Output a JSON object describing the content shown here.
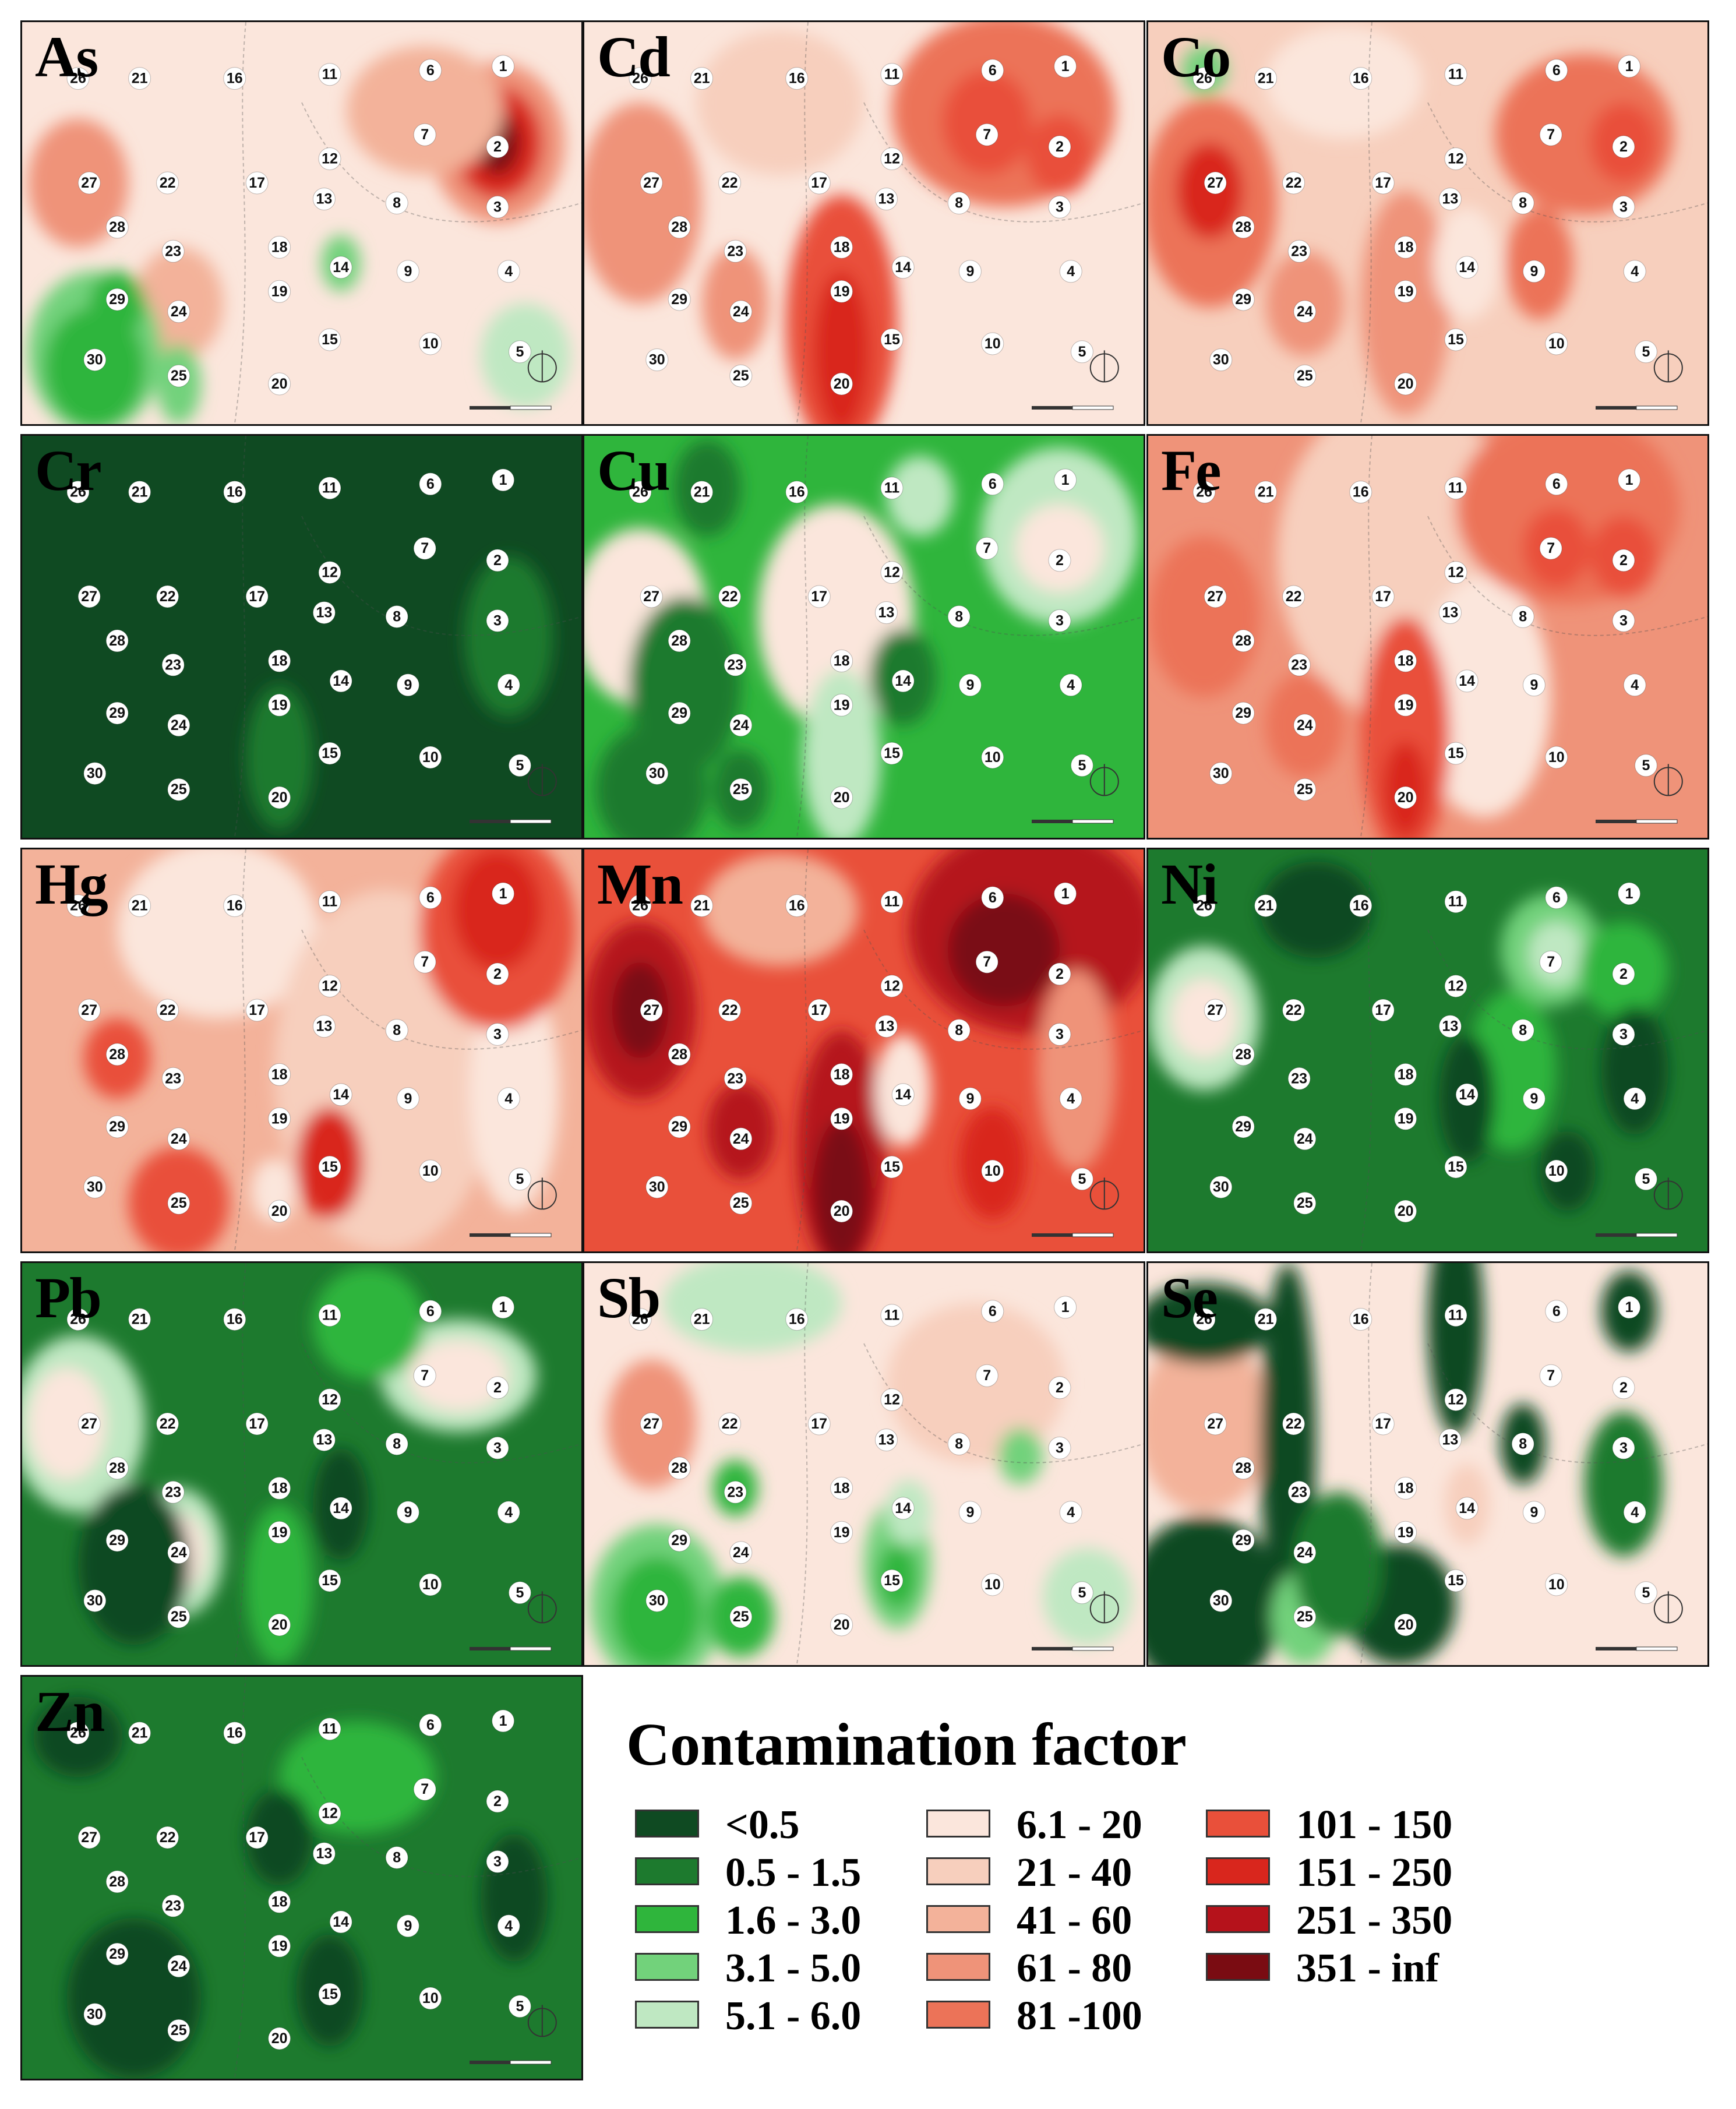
{
  "palette": {
    "c0": "#0f4a22",
    "c1": "#1d7a2e",
    "c2": "#2fb53c",
    "c3": "#72d27b",
    "c4": "#bfe8c2",
    "c5": "#fbe6dc",
    "c6": "#f7cfbd",
    "c7": "#f3b29a",
    "c8": "#ef9379",
    "c9": "#ec7358",
    "c10": "#e9503a",
    "c11": "#d9261d",
    "c12": "#b5121b",
    "c13": "#7a0c12"
  },
  "sites": [
    {
      "id": "1",
      "u": 0.86,
      "v": 0.11
    },
    {
      "id": "2",
      "u": 0.85,
      "v": 0.31
    },
    {
      "id": "3",
      "u": 0.85,
      "v": 0.46
    },
    {
      "id": "4",
      "u": 0.87,
      "v": 0.62
    },
    {
      "id": "5",
      "u": 0.89,
      "v": 0.82
    },
    {
      "id": "6",
      "u": 0.73,
      "v": 0.12
    },
    {
      "id": "7",
      "u": 0.72,
      "v": 0.28
    },
    {
      "id": "8",
      "u": 0.67,
      "v": 0.45
    },
    {
      "id": "9",
      "u": 0.69,
      "v": 0.62
    },
    {
      "id": "10",
      "u": 0.73,
      "v": 0.8
    },
    {
      "id": "11",
      "u": 0.55,
      "v": 0.13
    },
    {
      "id": "12",
      "u": 0.55,
      "v": 0.34
    },
    {
      "id": "13",
      "u": 0.54,
      "v": 0.44
    },
    {
      "id": "14",
      "u": 0.57,
      "v": 0.61
    },
    {
      "id": "15",
      "u": 0.55,
      "v": 0.79
    },
    {
      "id": "16",
      "u": 0.38,
      "v": 0.14
    },
    {
      "id": "17",
      "u": 0.42,
      "v": 0.4
    },
    {
      "id": "18",
      "u": 0.46,
      "v": 0.56
    },
    {
      "id": "19",
      "u": 0.46,
      "v": 0.67
    },
    {
      "id": "20",
      "u": 0.46,
      "v": 0.9
    },
    {
      "id": "21",
      "u": 0.21,
      "v": 0.14
    },
    {
      "id": "22",
      "u": 0.26,
      "v": 0.4
    },
    {
      "id": "23",
      "u": 0.27,
      "v": 0.57
    },
    {
      "id": "24",
      "u": 0.28,
      "v": 0.72
    },
    {
      "id": "25",
      "u": 0.28,
      "v": 0.88
    },
    {
      "id": "26",
      "u": 0.1,
      "v": 0.14
    },
    {
      "id": "27",
      "u": 0.12,
      "v": 0.4
    },
    {
      "id": "28",
      "u": 0.17,
      "v": 0.51
    },
    {
      "id": "29",
      "u": 0.17,
      "v": 0.69
    },
    {
      "id": "30",
      "u": 0.13,
      "v": 0.84
    }
  ],
  "maps": [
    {
      "element": "As",
      "base": 5,
      "blobs": [
        {
          "u": 0.85,
          "v": 0.3,
          "rx": 0.12,
          "ry": 0.2,
          "c": 8
        },
        {
          "u": 0.85,
          "v": 0.3,
          "rx": 0.08,
          "ry": 0.14,
          "c": 11
        },
        {
          "u": 0.85,
          "v": 0.3,
          "rx": 0.04,
          "ry": 0.08,
          "c": 13
        },
        {
          "u": 0.72,
          "v": 0.22,
          "rx": 0.14,
          "ry": 0.16,
          "c": 7
        },
        {
          "u": 0.1,
          "v": 0.4,
          "rx": 0.09,
          "ry": 0.16,
          "c": 8
        },
        {
          "u": 0.28,
          "v": 0.7,
          "rx": 0.08,
          "ry": 0.14,
          "c": 7
        },
        {
          "u": 0.13,
          "v": 0.82,
          "rx": 0.12,
          "ry": 0.2,
          "c": 3
        },
        {
          "u": 0.13,
          "v": 0.86,
          "rx": 0.09,
          "ry": 0.15,
          "c": 2
        },
        {
          "u": 0.17,
          "v": 0.7,
          "rx": 0.05,
          "ry": 0.08,
          "c": 2
        },
        {
          "u": 0.28,
          "v": 0.9,
          "rx": 0.04,
          "ry": 0.1,
          "c": 3
        },
        {
          "u": 0.57,
          "v": 0.6,
          "rx": 0.035,
          "ry": 0.07,
          "c": 3
        },
        {
          "u": 0.9,
          "v": 0.83,
          "rx": 0.08,
          "ry": 0.13,
          "c": 4
        }
      ]
    },
    {
      "element": "Cd",
      "base": 5,
      "blobs": [
        {
          "u": 0.75,
          "v": 0.22,
          "rx": 0.2,
          "ry": 0.24,
          "c": 9
        },
        {
          "u": 0.72,
          "v": 0.25,
          "rx": 0.08,
          "ry": 0.13,
          "c": 10
        },
        {
          "u": 0.85,
          "v": 0.33,
          "rx": 0.06,
          "ry": 0.1,
          "c": 10
        },
        {
          "u": 0.1,
          "v": 0.45,
          "rx": 0.11,
          "ry": 0.25,
          "c": 8
        },
        {
          "u": 0.46,
          "v": 0.75,
          "rx": 0.1,
          "ry": 0.32,
          "c": 10
        },
        {
          "u": 0.46,
          "v": 0.82,
          "rx": 0.05,
          "ry": 0.2,
          "c": 11
        },
        {
          "u": 0.27,
          "v": 0.7,
          "rx": 0.06,
          "ry": 0.14,
          "c": 8
        },
        {
          "u": 0.35,
          "v": 0.2,
          "rx": 0.15,
          "ry": 0.18,
          "c": 6
        }
      ]
    },
    {
      "element": "Co",
      "base": 6,
      "blobs": [
        {
          "u": 0.11,
          "v": 0.45,
          "rx": 0.12,
          "ry": 0.26,
          "c": 9
        },
        {
          "u": 0.11,
          "v": 0.42,
          "rx": 0.06,
          "ry": 0.12,
          "c": 11
        },
        {
          "u": 0.1,
          "v": 0.12,
          "rx": 0.04,
          "ry": 0.06,
          "c": 3
        },
        {
          "u": 0.78,
          "v": 0.28,
          "rx": 0.16,
          "ry": 0.2,
          "c": 9
        },
        {
          "u": 0.85,
          "v": 0.3,
          "rx": 0.06,
          "ry": 0.1,
          "c": 10
        },
        {
          "u": 0.7,
          "v": 0.6,
          "rx": 0.06,
          "ry": 0.14,
          "c": 9
        },
        {
          "u": 0.46,
          "v": 0.7,
          "rx": 0.08,
          "ry": 0.28,
          "c": 8
        },
        {
          "u": 0.28,
          "v": 0.7,
          "rx": 0.07,
          "ry": 0.13,
          "c": 8
        },
        {
          "u": 0.57,
          "v": 0.6,
          "rx": 0.06,
          "ry": 0.14,
          "c": 5
        },
        {
          "u": 0.35,
          "v": 0.15,
          "rx": 0.14,
          "ry": 0.14,
          "c": 5
        }
      ]
    },
    {
      "element": "Cr",
      "base": 0,
      "blobs": [
        {
          "u": 0.46,
          "v": 0.8,
          "rx": 0.06,
          "ry": 0.18,
          "c": 1
        },
        {
          "u": 0.87,
          "v": 0.5,
          "rx": 0.08,
          "ry": 0.2,
          "c": 1
        }
      ]
    },
    {
      "element": "Cu",
      "base": 2,
      "blobs": [
        {
          "u": 0.1,
          "v": 0.45,
          "rx": 0.12,
          "ry": 0.22,
          "c": 5
        },
        {
          "u": 0.45,
          "v": 0.45,
          "rx": 0.14,
          "ry": 0.28,
          "c": 5
        },
        {
          "u": 0.46,
          "v": 0.8,
          "rx": 0.07,
          "ry": 0.22,
          "c": 4
        },
        {
          "u": 0.85,
          "v": 0.25,
          "rx": 0.14,
          "ry": 0.22,
          "c": 4
        },
        {
          "u": 0.85,
          "v": 0.28,
          "rx": 0.08,
          "ry": 0.11,
          "c": 5
        },
        {
          "u": 0.6,
          "v": 0.15,
          "rx": 0.06,
          "ry": 0.1,
          "c": 4
        },
        {
          "u": 0.18,
          "v": 0.62,
          "rx": 0.1,
          "ry": 0.22,
          "c": 1
        },
        {
          "u": 0.12,
          "v": 0.88,
          "rx": 0.1,
          "ry": 0.16,
          "c": 1
        },
        {
          "u": 0.57,
          "v": 0.6,
          "rx": 0.06,
          "ry": 0.12,
          "c": 1
        },
        {
          "u": 0.28,
          "v": 0.88,
          "rx": 0.05,
          "ry": 0.1,
          "c": 1
        },
        {
          "u": 0.22,
          "v": 0.13,
          "rx": 0.06,
          "ry": 0.12,
          "c": 1
        }
      ]
    },
    {
      "element": "Fe",
      "base": 8,
      "blobs": [
        {
          "u": 0.45,
          "v": 0.3,
          "rx": 0.22,
          "ry": 0.4,
          "c": 6
        },
        {
          "u": 0.6,
          "v": 0.65,
          "rx": 0.12,
          "ry": 0.3,
          "c": 5
        },
        {
          "u": 0.75,
          "v": 0.18,
          "rx": 0.2,
          "ry": 0.24,
          "c": 9
        },
        {
          "u": 0.85,
          "v": 0.3,
          "rx": 0.06,
          "ry": 0.1,
          "c": 10
        },
        {
          "u": 0.73,
          "v": 0.28,
          "rx": 0.06,
          "ry": 0.1,
          "c": 10
        },
        {
          "u": 0.46,
          "v": 0.75,
          "rx": 0.08,
          "ry": 0.3,
          "c": 10
        },
        {
          "u": 0.46,
          "v": 0.88,
          "rx": 0.04,
          "ry": 0.12,
          "c": 11
        },
        {
          "u": 0.1,
          "v": 0.45,
          "rx": 0.1,
          "ry": 0.2,
          "c": 9
        },
        {
          "u": 0.28,
          "v": 0.72,
          "rx": 0.07,
          "ry": 0.13,
          "c": 9
        }
      ]
    },
    {
      "element": "Hg",
      "base": 7,
      "blobs": [
        {
          "u": 0.35,
          "v": 0.2,
          "rx": 0.18,
          "ry": 0.22,
          "c": 5
        },
        {
          "u": 0.65,
          "v": 0.55,
          "rx": 0.2,
          "ry": 0.45,
          "c": 6
        },
        {
          "u": 0.88,
          "v": 0.6,
          "rx": 0.08,
          "ry": 0.3,
          "c": 5
        },
        {
          "u": 0.85,
          "v": 0.2,
          "rx": 0.14,
          "ry": 0.25,
          "c": 10
        },
        {
          "u": 0.85,
          "v": 0.15,
          "rx": 0.08,
          "ry": 0.15,
          "c": 11
        },
        {
          "u": 0.55,
          "v": 0.78,
          "rx": 0.06,
          "ry": 0.14,
          "c": 11
        },
        {
          "u": 0.28,
          "v": 0.88,
          "rx": 0.09,
          "ry": 0.14,
          "c": 10
        },
        {
          "u": 0.17,
          "v": 0.52,
          "rx": 0.06,
          "ry": 0.1,
          "c": 10
        },
        {
          "u": 0.45,
          "v": 0.85,
          "rx": 0.04,
          "ry": 0.08,
          "c": 5
        }
      ]
    },
    {
      "element": "Mn",
      "base": 10,
      "blobs": [
        {
          "u": 0.8,
          "v": 0.2,
          "rx": 0.22,
          "ry": 0.26,
          "c": 12
        },
        {
          "u": 0.75,
          "v": 0.25,
          "rx": 0.1,
          "ry": 0.14,
          "c": 13
        },
        {
          "u": 0.1,
          "v": 0.4,
          "rx": 0.1,
          "ry": 0.22,
          "c": 12
        },
        {
          "u": 0.1,
          "v": 0.4,
          "rx": 0.05,
          "ry": 0.12,
          "c": 13
        },
        {
          "u": 0.46,
          "v": 0.75,
          "rx": 0.08,
          "ry": 0.3,
          "c": 12
        },
        {
          "u": 0.46,
          "v": 0.85,
          "rx": 0.05,
          "ry": 0.18,
          "c": 13
        },
        {
          "u": 0.28,
          "v": 0.7,
          "rx": 0.06,
          "ry": 0.12,
          "c": 12
        },
        {
          "u": 0.57,
          "v": 0.6,
          "rx": 0.05,
          "ry": 0.14,
          "c": 5
        },
        {
          "u": 0.88,
          "v": 0.55,
          "rx": 0.07,
          "ry": 0.25,
          "c": 8
        },
        {
          "u": 0.35,
          "v": 0.15,
          "rx": 0.14,
          "ry": 0.14,
          "c": 7
        },
        {
          "u": 0.73,
          "v": 0.78,
          "rx": 0.06,
          "ry": 0.14,
          "c": 11
        }
      ]
    },
    {
      "element": "Ni",
      "base": 1,
      "blobs": [
        {
          "u": 0.1,
          "v": 0.42,
          "rx": 0.1,
          "ry": 0.18,
          "c": 4
        },
        {
          "u": 0.1,
          "v": 0.42,
          "rx": 0.06,
          "ry": 0.1,
          "c": 5
        },
        {
          "u": 0.72,
          "v": 0.25,
          "rx": 0.09,
          "ry": 0.14,
          "c": 3
        },
        {
          "u": 0.73,
          "v": 0.26,
          "rx": 0.05,
          "ry": 0.08,
          "c": 4
        },
        {
          "u": 0.85,
          "v": 0.3,
          "rx": 0.08,
          "ry": 0.12,
          "c": 2
        },
        {
          "u": 0.65,
          "v": 0.55,
          "rx": 0.08,
          "ry": 0.2,
          "c": 2
        },
        {
          "u": 0.57,
          "v": 0.62,
          "rx": 0.05,
          "ry": 0.16,
          "c": 0
        },
        {
          "u": 0.75,
          "v": 0.8,
          "rx": 0.05,
          "ry": 0.1,
          "c": 0
        },
        {
          "u": 0.87,
          "v": 0.55,
          "rx": 0.06,
          "ry": 0.16,
          "c": 0
        },
        {
          "u": 0.3,
          "v": 0.15,
          "rx": 0.1,
          "ry": 0.12,
          "c": 0
        }
      ]
    },
    {
      "element": "Pb",
      "base": 1,
      "blobs": [
        {
          "u": 0.1,
          "v": 0.4,
          "rx": 0.12,
          "ry": 0.22,
          "c": 4
        },
        {
          "u": 0.08,
          "v": 0.4,
          "rx": 0.07,
          "ry": 0.14,
          "c": 5
        },
        {
          "u": 0.78,
          "v": 0.28,
          "rx": 0.14,
          "ry": 0.14,
          "c": 4
        },
        {
          "u": 0.78,
          "v": 0.28,
          "rx": 0.09,
          "ry": 0.09,
          "c": 5
        },
        {
          "u": 0.28,
          "v": 0.72,
          "rx": 0.08,
          "ry": 0.16,
          "c": 4
        },
        {
          "u": 0.28,
          "v": 0.72,
          "rx": 0.05,
          "ry": 0.1,
          "c": 5
        },
        {
          "u": 0.46,
          "v": 0.8,
          "rx": 0.06,
          "ry": 0.2,
          "c": 2
        },
        {
          "u": 0.2,
          "v": 0.75,
          "rx": 0.1,
          "ry": 0.2,
          "c": 0
        },
        {
          "u": 0.57,
          "v": 0.6,
          "rx": 0.05,
          "ry": 0.14,
          "c": 0
        },
        {
          "u": 0.62,
          "v": 0.15,
          "rx": 0.1,
          "ry": 0.14,
          "c": 2
        }
      ]
    },
    {
      "element": "Sb",
      "base": 5,
      "blobs": [
        {
          "u": 0.12,
          "v": 0.4,
          "rx": 0.08,
          "ry": 0.16,
          "c": 8
        },
        {
          "u": 0.7,
          "v": 0.3,
          "rx": 0.16,
          "ry": 0.2,
          "c": 6
        },
        {
          "u": 0.13,
          "v": 0.85,
          "rx": 0.12,
          "ry": 0.2,
          "c": 3
        },
        {
          "u": 0.13,
          "v": 0.87,
          "rx": 0.08,
          "ry": 0.14,
          "c": 2
        },
        {
          "u": 0.28,
          "v": 0.88,
          "rx": 0.06,
          "ry": 0.1,
          "c": 2
        },
        {
          "u": 0.27,
          "v": 0.56,
          "rx": 0.04,
          "ry": 0.07,
          "c": 2
        },
        {
          "u": 0.56,
          "v": 0.75,
          "rx": 0.06,
          "ry": 0.16,
          "c": 3
        },
        {
          "u": 0.56,
          "v": 0.78,
          "rx": 0.035,
          "ry": 0.08,
          "c": 2
        },
        {
          "u": 0.78,
          "v": 0.48,
          "rx": 0.04,
          "ry": 0.07,
          "c": 3
        },
        {
          "u": 0.9,
          "v": 0.83,
          "rx": 0.08,
          "ry": 0.12,
          "c": 4
        },
        {
          "u": 0.3,
          "v": 0.1,
          "rx": 0.16,
          "ry": 0.12,
          "c": 4
        },
        {
          "u": 0.58,
          "v": 0.62,
          "rx": 0.04,
          "ry": 0.08,
          "c": 4
        }
      ]
    },
    {
      "element": "Se",
      "base": 5,
      "blobs": [
        {
          "u": 0.1,
          "v": 0.4,
          "rx": 0.12,
          "ry": 0.22,
          "c": 7
        },
        {
          "u": 0.1,
          "v": 0.85,
          "rx": 0.14,
          "ry": 0.22,
          "c": 0
        },
        {
          "u": 0.25,
          "v": 0.45,
          "rx": 0.05,
          "ry": 0.45,
          "c": 0
        },
        {
          "u": 0.1,
          "v": 0.15,
          "rx": 0.12,
          "ry": 0.1,
          "c": 0
        },
        {
          "u": 0.55,
          "v": 0.15,
          "rx": 0.05,
          "ry": 0.28,
          "c": 0
        },
        {
          "u": 0.67,
          "v": 0.45,
          "rx": 0.04,
          "ry": 0.1,
          "c": 0
        },
        {
          "u": 0.85,
          "v": 0.55,
          "rx": 0.07,
          "ry": 0.18,
          "c": 1
        },
        {
          "u": 0.86,
          "v": 0.12,
          "rx": 0.05,
          "ry": 0.1,
          "c": 0
        },
        {
          "u": 0.45,
          "v": 0.85,
          "rx": 0.1,
          "ry": 0.15,
          "c": 0
        },
        {
          "u": 0.28,
          "v": 0.88,
          "rx": 0.06,
          "ry": 0.12,
          "c": 3
        },
        {
          "u": 0.57,
          "v": 0.6,
          "rx": 0.04,
          "ry": 0.1,
          "c": 6
        },
        {
          "u": 0.34,
          "v": 0.75,
          "rx": 0.08,
          "ry": 0.18,
          "c": 1
        }
      ]
    },
    {
      "element": "Zn",
      "base": 1,
      "blobs": [
        {
          "u": 0.2,
          "v": 0.8,
          "rx": 0.12,
          "ry": 0.2,
          "c": 0
        },
        {
          "u": 0.55,
          "v": 0.78,
          "rx": 0.06,
          "ry": 0.14,
          "c": 0
        },
        {
          "u": 0.6,
          "v": 0.25,
          "rx": 0.14,
          "ry": 0.14,
          "c": 2
        },
        {
          "u": 0.46,
          "v": 0.4,
          "rx": 0.06,
          "ry": 0.12,
          "c": 0
        },
        {
          "u": 0.1,
          "v": 0.15,
          "rx": 0.08,
          "ry": 0.1,
          "c": 0
        },
        {
          "u": 0.88,
          "v": 0.55,
          "rx": 0.06,
          "ry": 0.16,
          "c": 0
        }
      ]
    }
  ],
  "legend": {
    "title": "Contamination factor",
    "items": [
      {
        "label": "<0.5",
        "color": "#0f4a22"
      },
      {
        "label": "0.5 - 1.5",
        "color": "#1d7a2e"
      },
      {
        "label": "1.6 - 3.0",
        "color": "#2fb53c"
      },
      {
        "label": "3.1 - 5.0",
        "color": "#72d27b"
      },
      {
        "label": "5.1 - 6.0",
        "color": "#bfe8c2"
      },
      {
        "label": "6.1 - 20",
        "color": "#fbe6dc"
      },
      {
        "label": "21 - 40",
        "color": "#f7cfbd"
      },
      {
        "label": "41 - 60",
        "color": "#f3b29a"
      },
      {
        "label": "61 - 80",
        "color": "#ef9379"
      },
      {
        "label": "81 -100",
        "color": "#ec7358"
      },
      {
        "label": "101 - 150",
        "color": "#e9503a"
      },
      {
        "label": "151 - 250",
        "color": "#d9261d"
      },
      {
        "label": "251 - 350",
        "color": "#b5121b"
      },
      {
        "label": "351 - inf",
        "color": "#7a0c12"
      }
    ]
  }
}
